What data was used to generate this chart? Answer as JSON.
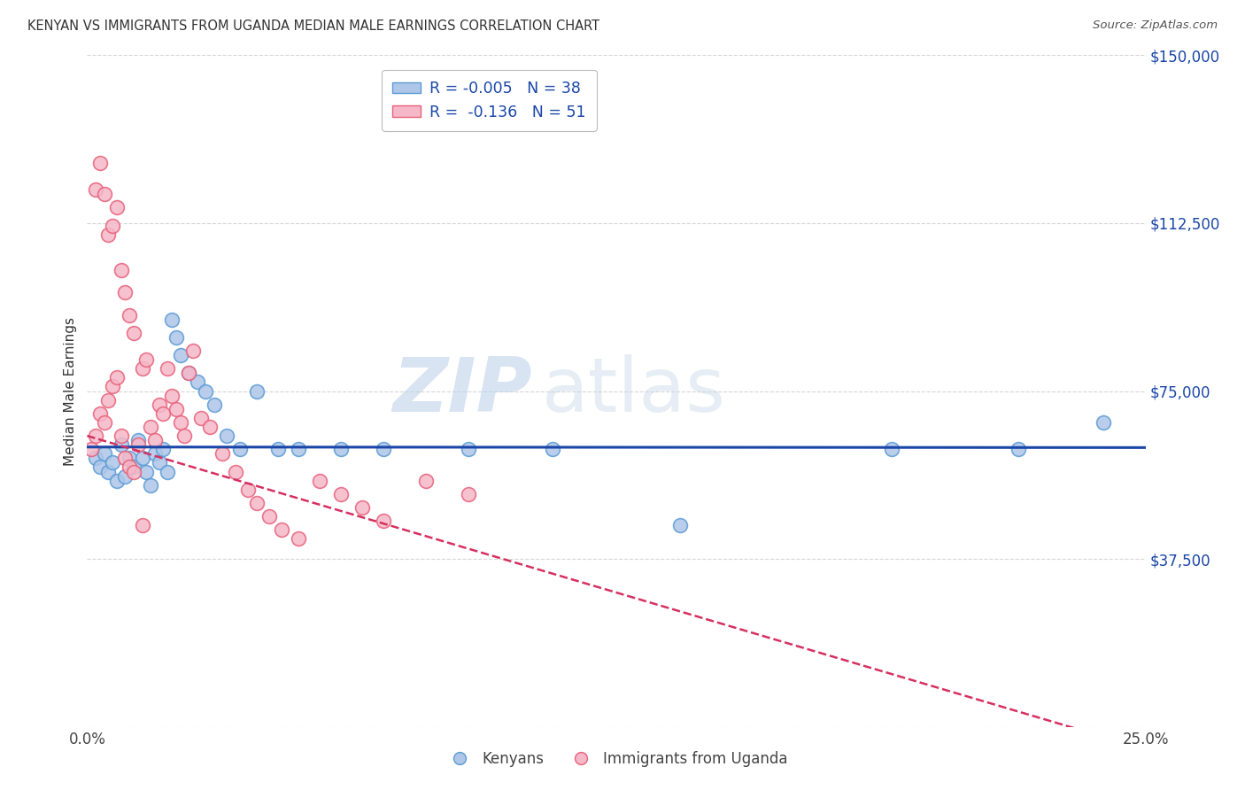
{
  "title": "KENYAN VS IMMIGRANTS FROM UGANDA MEDIAN MALE EARNINGS CORRELATION CHART",
  "source": "Source: ZipAtlas.com",
  "ylabel": "Median Male Earnings",
  "xlim": [
    0.0,
    0.25
  ],
  "ylim": [
    0,
    150000
  ],
  "yticks": [
    0,
    37500,
    75000,
    112500,
    150000
  ],
  "ytick_labels": [
    "",
    "$37,500",
    "$75,000",
    "$112,500",
    "$150,000"
  ],
  "xticks": [
    0.0,
    0.05,
    0.1,
    0.15,
    0.2,
    0.25
  ],
  "xtick_labels": [
    "0.0%",
    "",
    "",
    "",
    "",
    "25.0%"
  ],
  "background_color": "#ffffff",
  "grid_color": "#cccccc",
  "kenyan_fill": "#aec6e8",
  "uganda_fill": "#f5b8c8",
  "kenyan_edge": "#5b9bd5",
  "uganda_edge": "#e8607a",
  "kenyan_line_color": "#1a46a8",
  "uganda_line_color": "#d63060",
  "legend_R_kenya": "-0.005",
  "legend_N_kenya": "38",
  "legend_R_uganda": "-0.136",
  "legend_N_uganda": "51",
  "watermark_zip": "ZIP",
  "watermark_atlas": "atlas",
  "kenya_x": [
    0.002,
    0.003,
    0.004,
    0.005,
    0.006,
    0.007,
    0.008,
    0.009,
    0.01,
    0.011,
    0.012,
    0.013,
    0.014,
    0.015,
    0.016,
    0.017,
    0.018,
    0.019,
    0.02,
    0.021,
    0.022,
    0.024,
    0.026,
    0.028,
    0.03,
    0.033,
    0.036,
    0.04,
    0.045,
    0.05,
    0.06,
    0.07,
    0.09,
    0.11,
    0.14,
    0.19,
    0.22,
    0.24
  ],
  "kenya_y": [
    60000,
    58000,
    61000,
    57000,
    59000,
    55000,
    63000,
    56000,
    60000,
    58000,
    64000,
    60000,
    57000,
    54000,
    61000,
    59000,
    62000,
    57000,
    91000,
    87000,
    83000,
    79000,
    77000,
    75000,
    72000,
    65000,
    62000,
    75000,
    62000,
    62000,
    62000,
    62000,
    62000,
    62000,
    45000,
    62000,
    62000,
    68000
  ],
  "uganda_x": [
    0.001,
    0.002,
    0.003,
    0.004,
    0.005,
    0.006,
    0.007,
    0.008,
    0.009,
    0.01,
    0.011,
    0.012,
    0.013,
    0.014,
    0.015,
    0.016,
    0.017,
    0.018,
    0.019,
    0.02,
    0.021,
    0.022,
    0.023,
    0.024,
    0.025,
    0.027,
    0.029,
    0.032,
    0.035,
    0.038,
    0.04,
    0.043,
    0.046,
    0.05,
    0.055,
    0.06,
    0.065,
    0.07,
    0.08,
    0.09,
    0.002,
    0.003,
    0.004,
    0.005,
    0.006,
    0.007,
    0.008,
    0.009,
    0.01,
    0.011,
    0.013
  ],
  "uganda_y": [
    62000,
    65000,
    70000,
    68000,
    73000,
    76000,
    78000,
    65000,
    60000,
    58000,
    57000,
    63000,
    80000,
    82000,
    67000,
    64000,
    72000,
    70000,
    80000,
    74000,
    71000,
    68000,
    65000,
    79000,
    84000,
    69000,
    67000,
    61000,
    57000,
    53000,
    50000,
    47000,
    44000,
    42000,
    55000,
    52000,
    49000,
    46000,
    55000,
    52000,
    120000,
    126000,
    119000,
    110000,
    112000,
    116000,
    102000,
    97000,
    92000,
    88000,
    45000
  ]
}
